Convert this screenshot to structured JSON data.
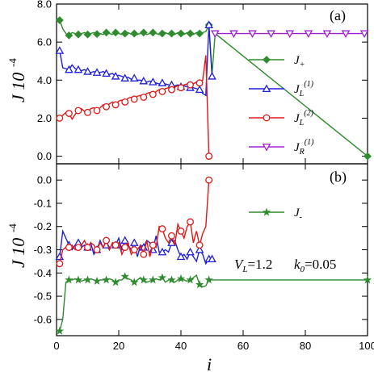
{
  "chart_data": [
    {
      "panel_label": "(a)",
      "type": "line",
      "ylim": [
        -0.4,
        8.0
      ],
      "xlim": [
        0,
        100
      ],
      "yticks": [
        "0.0",
        "2.0",
        "4.0",
        "6.0",
        "8.0"
      ],
      "ytick_values": [
        0,
        2,
        4,
        6,
        8
      ],
      "ylabel": {
        "text": "J 10",
        "exp": "-4"
      },
      "legend": [
        {
          "main": "J",
          "sub": "+",
          "sup": "",
          "color": "#2e8b2e",
          "marker": "diamond"
        },
        {
          "main": "J",
          "sub": "L",
          "sup": "(1)",
          "color": "#1f1fd8",
          "marker": "triangle-up"
        },
        {
          "main": "J",
          "sub": "L",
          "sup": "(2)",
          "color": "#e01818",
          "marker": "circle"
        },
        {
          "main": "J",
          "sub": "R",
          "sup": "(1)",
          "color": "#a020d0",
          "marker": "triangle-down"
        }
      ],
      "series": [
        {
          "name": "J+",
          "color": "#2e8b2e",
          "marker": "diamond",
          "x": [
            1,
            2,
            3,
            4,
            5,
            6,
            7,
            8,
            9,
            10,
            11,
            12,
            13,
            14,
            15,
            16,
            17,
            18,
            19,
            20,
            21,
            22,
            23,
            24,
            25,
            26,
            27,
            28,
            29,
            30,
            31,
            32,
            33,
            34,
            35,
            36,
            37,
            38,
            39,
            40,
            41,
            42,
            43,
            44,
            45,
            46,
            47,
            48,
            49,
            50,
            51,
            100
          ],
          "y": [
            7.15,
            6.7,
            6.45,
            6.35,
            6.5,
            6.45,
            6.4,
            6.45,
            6.5,
            6.4,
            6.45,
            6.5,
            6.42,
            6.45,
            6.4,
            6.5,
            6.45,
            6.4,
            6.5,
            6.45,
            6.4,
            6.45,
            6.5,
            6.42,
            6.45,
            6.4,
            6.45,
            6.5,
            6.4,
            6.45,
            6.5,
            6.45,
            6.4,
            6.45,
            6.5,
            6.42,
            6.45,
            6.4,
            6.5,
            6.45,
            6.4,
            6.5,
            6.45,
            6.4,
            6.5,
            6.45,
            6.5,
            6.55,
            6.9,
            4.3,
            6.45,
            0.0
          ]
        },
        {
          "name": "JL(1)",
          "color": "#1f1fd8",
          "marker": "triangle-up",
          "x": [
            1,
            2,
            3,
            4,
            5,
            6,
            7,
            8,
            9,
            10,
            11,
            12,
            13,
            14,
            15,
            16,
            17,
            18,
            19,
            20,
            21,
            22,
            23,
            24,
            25,
            26,
            27,
            28,
            29,
            30,
            31,
            32,
            33,
            34,
            35,
            36,
            37,
            38,
            39,
            40,
            41,
            42,
            43,
            44,
            45,
            46,
            47,
            48,
            49,
            50
          ],
          "y": [
            5.55,
            4.65,
            4.6,
            4.55,
            4.8,
            4.6,
            4.55,
            4.5,
            4.55,
            4.45,
            4.4,
            4.45,
            4.4,
            4.4,
            4.45,
            4.35,
            4.3,
            4.35,
            4.2,
            4.25,
            4.2,
            4.1,
            4.15,
            4.05,
            4.1,
            4.0,
            4.0,
            3.95,
            3.9,
            3.95,
            3.9,
            3.85,
            3.8,
            3.85,
            3.8,
            3.75,
            3.75,
            3.7,
            3.75,
            3.65,
            3.7,
            3.65,
            3.6,
            3.6,
            3.55,
            3.5,
            3.3,
            3.2,
            6.9,
            4.2
          ]
        },
        {
          "name": "JL(2)",
          "color": "#e01818",
          "marker": "circle",
          "x": [
            1,
            2,
            3,
            4,
            5,
            6,
            7,
            8,
            9,
            10,
            11,
            12,
            13,
            14,
            15,
            16,
            17,
            18,
            19,
            20,
            21,
            22,
            23,
            24,
            25,
            26,
            27,
            28,
            29,
            30,
            31,
            32,
            33,
            34,
            35,
            36,
            37,
            38,
            39,
            40,
            41,
            42,
            43,
            44,
            45,
            46,
            47,
            48,
            49
          ],
          "y": [
            2.0,
            2.15,
            2.3,
            2.25,
            1.95,
            2.2,
            2.4,
            2.5,
            2.35,
            2.3,
            2.5,
            2.55,
            2.4,
            2.55,
            2.7,
            2.6,
            2.75,
            2.85,
            2.7,
            2.9,
            2.95,
            2.85,
            3.05,
            3.1,
            3.0,
            3.15,
            3.2,
            3.1,
            3.3,
            3.35,
            3.25,
            3.4,
            3.5,
            3.4,
            3.55,
            3.6,
            3.5,
            3.65,
            3.7,
            3.6,
            3.75,
            3.8,
            3.75,
            3.8,
            3.9,
            3.85,
            4.0,
            5.3,
            0.0
          ]
        },
        {
          "name": "JR(1)",
          "color": "#a020d0",
          "marker": "triangle-down",
          "x": [
            51,
            53,
            55,
            57,
            59,
            61,
            63,
            65,
            67,
            69,
            71,
            73,
            75,
            77,
            79,
            81,
            83,
            85,
            87,
            89,
            91,
            93,
            95,
            97,
            99
          ],
          "y": [
            6.45,
            6.45,
            6.45,
            6.45,
            6.45,
            6.45,
            6.45,
            6.45,
            6.45,
            6.45,
            6.45,
            6.45,
            6.45,
            6.45,
            6.45,
            6.45,
            6.45,
            6.45,
            6.45,
            6.45,
            6.45,
            6.45,
            6.45,
            6.45,
            6.45
          ]
        }
      ]
    },
    {
      "panel_label": "(b)",
      "type": "line",
      "ylim": [
        -0.67,
        0.07
      ],
      "xlim": [
        0,
        100
      ],
      "yticks": [
        "-0.6",
        "-0.5",
        "-0.4",
        "-0.3",
        "-0.2",
        "-0.1",
        "0.0"
      ],
      "ytick_values": [
        -0.6,
        -0.5,
        -0.4,
        -0.3,
        -0.2,
        -0.1,
        0.0
      ],
      "xticks": [
        "0",
        "20",
        "40",
        "60",
        "80",
        "100"
      ],
      "xtick_values": [
        0,
        20,
        40,
        60,
        80,
        100
      ],
      "xlabel": "i",
      "ylabel": {
        "text": "J 10",
        "exp": "-4"
      },
      "legend": [
        {
          "main": "J",
          "sub": "-",
          "sup": "",
          "color": "#2e8b2e",
          "marker": "star"
        }
      ],
      "annotation": {
        "v_label": "V",
        "v_sub": "L",
        "v_val": "=1.2",
        "k_label": "k",
        "k_sub": "0",
        "k_val": "=0.05"
      },
      "series": [
        {
          "name": "J-",
          "color": "#2e8b2e",
          "marker": "star",
          "x": [
            1,
            2,
            3,
            4,
            5,
            6,
            7,
            8,
            9,
            10,
            11,
            12,
            13,
            14,
            15,
            16,
            17,
            18,
            19,
            20,
            21,
            22,
            23,
            24,
            25,
            26,
            27,
            28,
            29,
            30,
            31,
            32,
            33,
            34,
            35,
            36,
            37,
            38,
            39,
            40,
            41,
            42,
            43,
            44,
            45,
            46,
            47,
            48,
            49,
            50,
            51,
            100
          ],
          "y": [
            -0.65,
            -0.6,
            -0.44,
            -0.43,
            -0.43,
            -0.425,
            -0.43,
            -0.435,
            -0.43,
            -0.43,
            -0.425,
            -0.43,
            -0.435,
            -0.43,
            -0.43,
            -0.43,
            -0.425,
            -0.43,
            -0.44,
            -0.43,
            -0.43,
            -0.415,
            -0.425,
            -0.43,
            -0.44,
            -0.43,
            -0.42,
            -0.43,
            -0.44,
            -0.435,
            -0.43,
            -0.425,
            -0.43,
            -0.42,
            -0.44,
            -0.43,
            -0.43,
            -0.44,
            -0.43,
            -0.425,
            -0.43,
            -0.435,
            -0.43,
            -0.42,
            -0.41,
            -0.45,
            -0.46,
            -0.455,
            -0.43,
            -0.43,
            -0.43,
            -0.43
          ]
        },
        {
          "name": "JL(1) b",
          "color": "#1f1fd8",
          "marker": "triangle-up",
          "x": [
            1,
            2,
            3,
            4,
            5,
            6,
            7,
            8,
            9,
            10,
            11,
            12,
            13,
            14,
            15,
            16,
            17,
            18,
            19,
            20,
            21,
            22,
            23,
            24,
            25,
            26,
            27,
            28,
            29,
            30,
            31,
            32,
            33,
            34,
            35,
            36,
            37,
            38,
            39,
            40,
            41,
            42,
            43,
            44,
            45,
            46,
            47,
            48,
            49,
            50
          ],
          "y": [
            -0.33,
            -0.22,
            -0.25,
            -0.28,
            -0.3,
            -0.28,
            -0.27,
            -0.29,
            -0.28,
            -0.29,
            -0.27,
            -0.32,
            -0.3,
            -0.26,
            -0.29,
            -0.28,
            -0.3,
            -0.27,
            -0.28,
            -0.25,
            -0.3,
            -0.26,
            -0.28,
            -0.3,
            -0.27,
            -0.33,
            -0.28,
            -0.29,
            -0.26,
            -0.27,
            -0.3,
            -0.24,
            -0.31,
            -0.31,
            -0.3,
            -0.31,
            -0.27,
            -0.26,
            -0.3,
            -0.33,
            -0.32,
            -0.34,
            -0.31,
            -0.33,
            -0.35,
            -0.3,
            -0.32,
            -0.36,
            -0.34,
            -0.34
          ]
        },
        {
          "name": "JL(2) b",
          "color": "#e01818",
          "marker": "circle",
          "x": [
            1,
            2,
            3,
            4,
            5,
            6,
            7,
            8,
            9,
            10,
            11,
            12,
            13,
            14,
            15,
            16,
            17,
            18,
            19,
            20,
            21,
            22,
            23,
            24,
            25,
            26,
            27,
            28,
            29,
            30,
            31,
            32,
            33,
            34,
            35,
            36,
            37,
            38,
            39,
            40,
            41,
            42,
            43,
            44,
            45,
            46,
            47,
            48,
            49
          ],
          "y": [
            -0.36,
            -0.3,
            -0.29,
            -0.29,
            -0.28,
            -0.3,
            -0.29,
            -0.28,
            -0.26,
            -0.29,
            -0.27,
            -0.28,
            -0.3,
            -0.27,
            -0.29,
            -0.26,
            -0.3,
            -0.27,
            -0.28,
            -0.27,
            -0.32,
            -0.29,
            -0.27,
            -0.32,
            -0.3,
            -0.3,
            -0.28,
            -0.32,
            -0.26,
            -0.33,
            -0.28,
            -0.29,
            -0.2,
            -0.21,
            -0.25,
            -0.27,
            -0.24,
            -0.28,
            -0.19,
            -0.22,
            -0.25,
            -0.2,
            -0.18,
            -0.27,
            -0.22,
            -0.28,
            -0.23,
            -0.2,
            0.0
          ]
        }
      ]
    }
  ]
}
